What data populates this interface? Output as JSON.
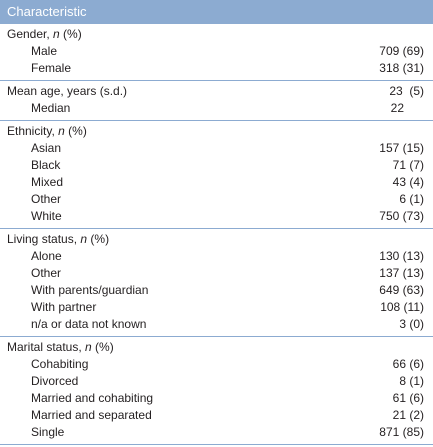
{
  "table": {
    "header": "Characteristic",
    "sections": [
      {
        "title_prefix": "Gender, ",
        "title_italic": "n",
        "title_suffix": " (%)",
        "title_value": "",
        "rows": [
          {
            "label": "Male",
            "value": "709 (69)"
          },
          {
            "label": "Female",
            "value": "318 (31)"
          }
        ]
      },
      {
        "title_prefix": "Mean age, years (s.d.)",
        "title_italic": "",
        "title_suffix": "",
        "title_value": "23  (5)",
        "rows": [
          {
            "label": "Median",
            "value": "22      "
          }
        ]
      },
      {
        "title_prefix": "Ethnicity, ",
        "title_italic": "n",
        "title_suffix": " (%)",
        "title_value": "",
        "rows": [
          {
            "label": "Asian",
            "value": "157 (15)"
          },
          {
            "label": "Black",
            "value": "71 (7)"
          },
          {
            "label": "Mixed",
            "value": "43 (4)"
          },
          {
            "label": "Other",
            "value": "6 (1)"
          },
          {
            "label": "White",
            "value": "750 (73)"
          }
        ]
      },
      {
        "title_prefix": "Living status, ",
        "title_italic": "n",
        "title_suffix": " (%)",
        "title_value": "",
        "rows": [
          {
            "label": "Alone",
            "value": "130 (13)"
          },
          {
            "label": "Other",
            "value": "137 (13)"
          },
          {
            "label": "With parents/guardian",
            "value": "649 (63)"
          },
          {
            "label": "With partner",
            "value": "108 (11)"
          },
          {
            "label": "n/a or data not known",
            "value": "3 (0)"
          }
        ]
      },
      {
        "title_prefix": "Marital status, ",
        "title_italic": "n",
        "title_suffix": " (%)",
        "title_value": "",
        "rows": [
          {
            "label": "Cohabiting",
            "value": "66 (6)"
          },
          {
            "label": "Divorced",
            "value": "8 (1)"
          },
          {
            "label": "Married and cohabiting",
            "value": "61 (6)"
          },
          {
            "label": "Married and separated",
            "value": "21 (2)"
          },
          {
            "label": "Single",
            "value": "871 (85)"
          }
        ]
      }
    ]
  }
}
